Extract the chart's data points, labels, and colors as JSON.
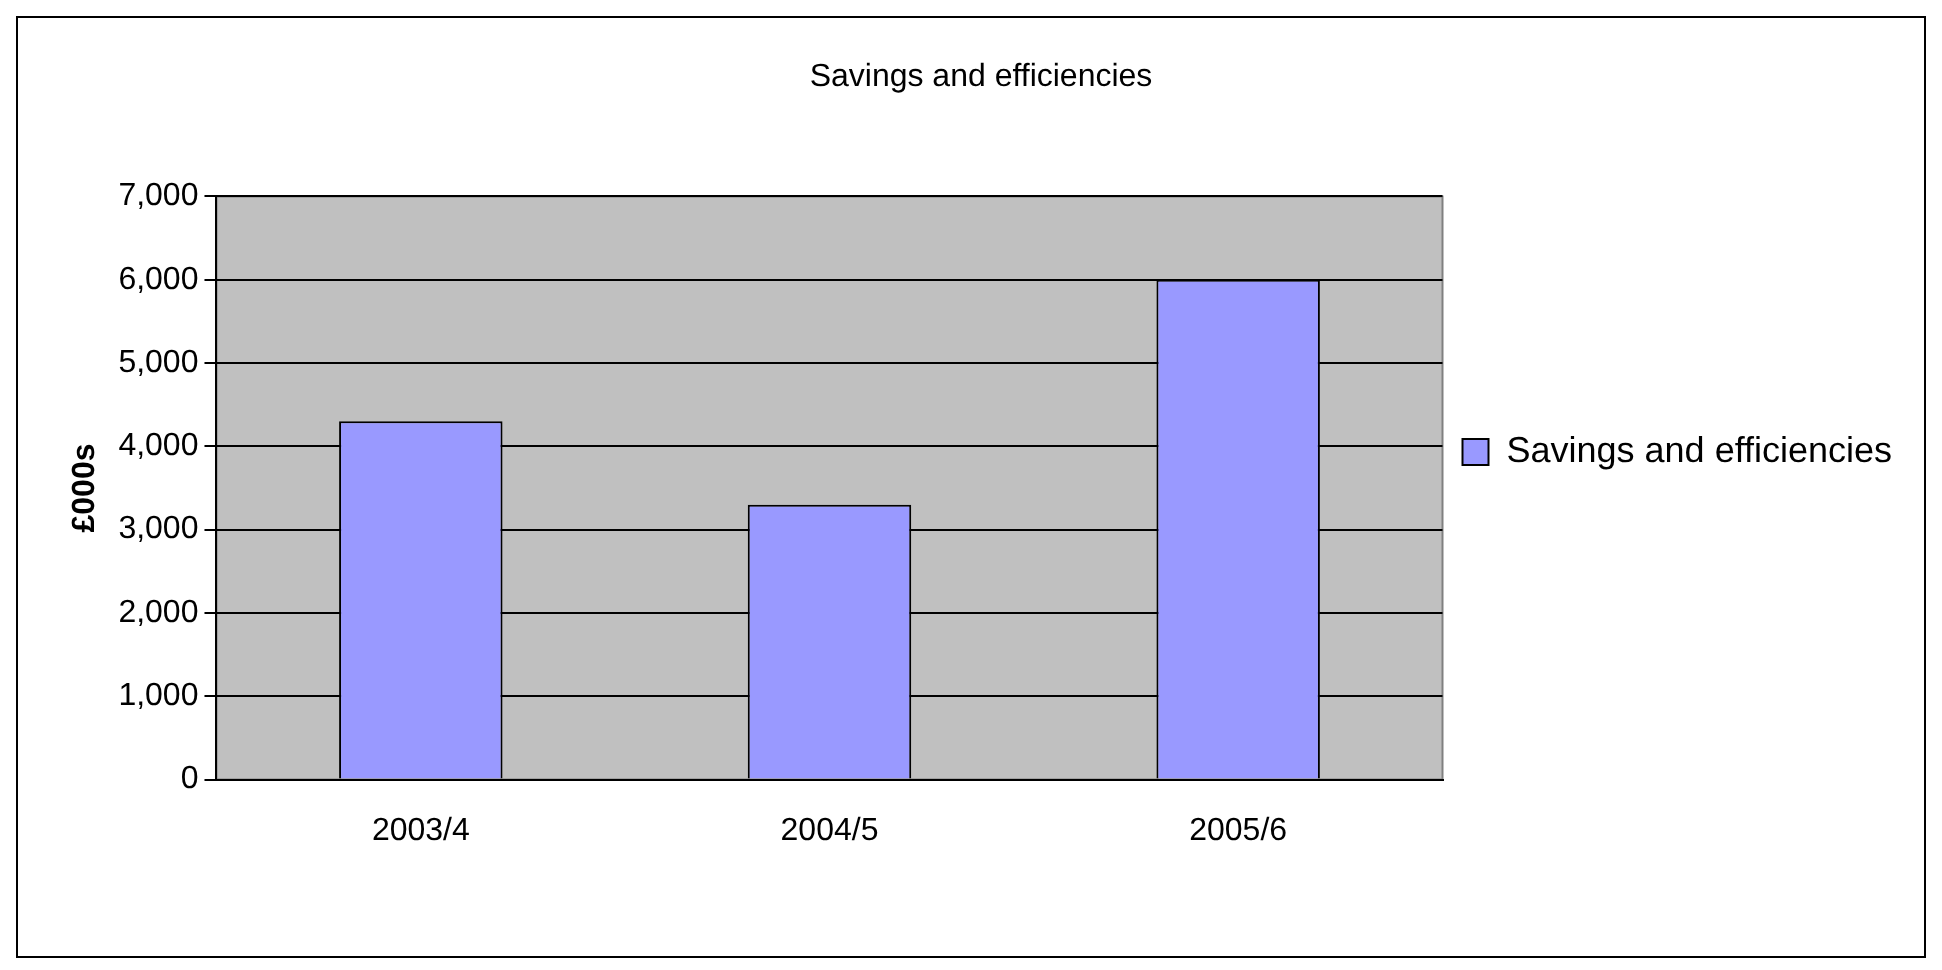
{
  "chart_data": {
    "type": "bar",
    "title": "Savings and efficiencies",
    "ylabel": "£000s",
    "categories": [
      "2003/4",
      "2004/5",
      "2005/6"
    ],
    "series": [
      {
        "name": "Savings and efficiencies",
        "color": "#9999ff",
        "values": [
          4300,
          3300,
          6000
        ]
      }
    ],
    "ylim": [
      0,
      7000
    ],
    "yticks": [
      0,
      {
        "value": 1000,
        "label": "1,000"
      },
      {
        "value": 2000,
        "label": "2,000"
      },
      {
        "value": 3000,
        "label": "3,000"
      },
      {
        "value": 4000,
        "label": "4,000"
      },
      {
        "value": 5000,
        "label": "5,000"
      },
      {
        "value": 6000,
        "label": "6,000"
      },
      {
        "value": 7000,
        "label": "7,000"
      }
    ],
    "grid": "y",
    "legend": "right"
  }
}
